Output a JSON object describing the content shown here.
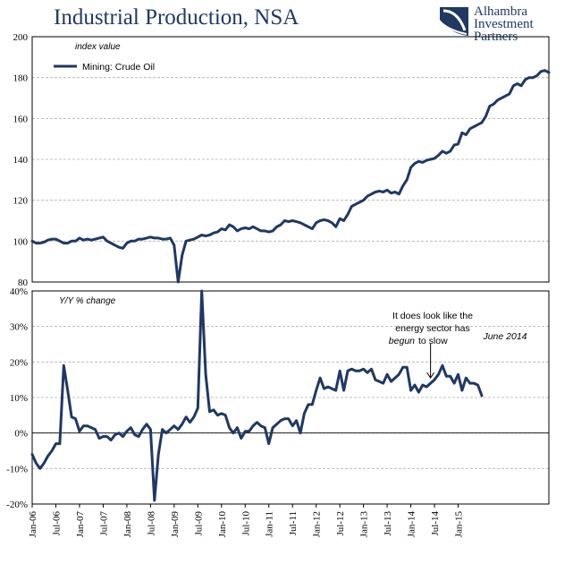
{
  "header": {
    "title": "Industrial Production, NSA",
    "logo_line1": "Alhambra",
    "logo_line2": "Investment",
    "logo_line3": "Partners"
  },
  "colors": {
    "series": "#1f3864",
    "grid": "#b0b0b0",
    "title": "#1f3864"
  },
  "chart_data": [
    {
      "type": "line",
      "title": "Industrial Production, NSA",
      "ylabel": "index value",
      "ylim": [
        80,
        200
      ],
      "y_ticks": [
        "80",
        "100",
        "120",
        "140",
        "160",
        "180",
        "200"
      ],
      "grid": true,
      "legend_position": "top-left",
      "series": [
        {
          "name": "Mining:  Crude Oil",
          "x_start": "2006-01",
          "frequency": "monthly",
          "values": [
            100,
            99,
            99,
            99.5,
            100.5,
            101,
            101,
            100,
            99,
            99,
            100,
            100,
            101.5,
            100.5,
            101,
            100.5,
            101,
            101.5,
            102,
            100,
            99,
            98,
            97,
            96.5,
            99,
            100,
            100,
            101,
            101,
            101.5,
            102,
            101.5,
            101.5,
            101,
            101,
            101.5,
            98,
            80,
            93,
            100,
            100.5,
            101,
            102,
            103,
            102.5,
            103,
            104,
            104.5,
            106,
            105.5,
            108,
            107,
            105,
            106,
            106.5,
            106,
            107,
            106,
            105,
            105,
            104.5,
            105,
            107,
            108,
            110,
            109.5,
            110,
            109.5,
            109,
            108,
            107,
            106,
            109,
            110,
            110.5,
            110,
            109,
            107,
            111,
            110,
            113,
            117,
            118,
            119,
            120,
            122,
            123,
            124,
            124.5,
            124,
            125,
            123.5,
            124,
            123,
            127,
            130,
            136,
            138,
            139,
            138.5,
            139.5,
            140,
            140.5,
            142,
            144,
            143,
            144,
            147,
            147.5,
            153,
            152,
            155,
            156,
            157,
            158,
            161,
            166,
            167,
            169,
            170,
            171,
            172,
            176,
            177,
            176,
            179,
            180,
            180,
            181,
            183,
            183.5,
            182.5
          ]
        }
      ]
    },
    {
      "type": "line",
      "ylabel": "Y/Y % change",
      "ylim": [
        -20,
        40
      ],
      "y_ticks": [
        "-20%",
        "-10%",
        "0%",
        "10%",
        "20%",
        "30%",
        "40%"
      ],
      "grid": true,
      "x_ticks": [
        "Jan-06",
        "Jul-06",
        "Jan-07",
        "Jul-07",
        "Jan-08",
        "Jul-08",
        "Jan-09",
        "Jul-09",
        "Jan-10",
        "Jul-10",
        "Jan-11",
        "Jul-11",
        "Jan-12",
        "Jul-12",
        "Jan-13",
        "Jul-13",
        "Jan-14",
        "Jul-14",
        "Jan-15"
      ],
      "annotations": {
        "note_line1": "It does look like the",
        "note_line2": "energy sector has",
        "note_line3_italic": "begun",
        "note_line3_rest": "to slow",
        "arrow_label": "June 2014"
      },
      "series": [
        {
          "x_start": "2006-01",
          "frequency": "monthly",
          "values": [
            -6,
            -8.5,
            -10,
            -8.5,
            -6.5,
            -5,
            -3,
            -3,
            19,
            12,
            4.5,
            4,
            0.5,
            2,
            2,
            1.5,
            1,
            -1.5,
            -1,
            -1,
            -2,
            -0.5,
            0,
            -1,
            0.5,
            1.5,
            -0.5,
            -1,
            1,
            2.5,
            1,
            -19,
            -6,
            1,
            0,
            1,
            2,
            1,
            2.5,
            4.5,
            3,
            4.5,
            7,
            40,
            16.5,
            6,
            6.5,
            5,
            5.5,
            5,
            1.5,
            0,
            1.5,
            -1.5,
            0.5,
            0.5,
            2,
            3,
            2,
            1.5,
            -3,
            1.5,
            2.5,
            3.5,
            4,
            4,
            2,
            3.5,
            0,
            5.5,
            8,
            8,
            12,
            15.5,
            12.5,
            13,
            12.5,
            12,
            17.5,
            12,
            17.5,
            18,
            17.5,
            17.5,
            18,
            17,
            18,
            15,
            14.5,
            14,
            16.5,
            14.5,
            15.5,
            16.5,
            18.5,
            18.5,
            12,
            13.5,
            11.5,
            13.5,
            13,
            14,
            15,
            16.5,
            19,
            16,
            16,
            14,
            16.5,
            12,
            15.5,
            14,
            14,
            13.5,
            10.5
          ]
        }
      ]
    }
  ]
}
